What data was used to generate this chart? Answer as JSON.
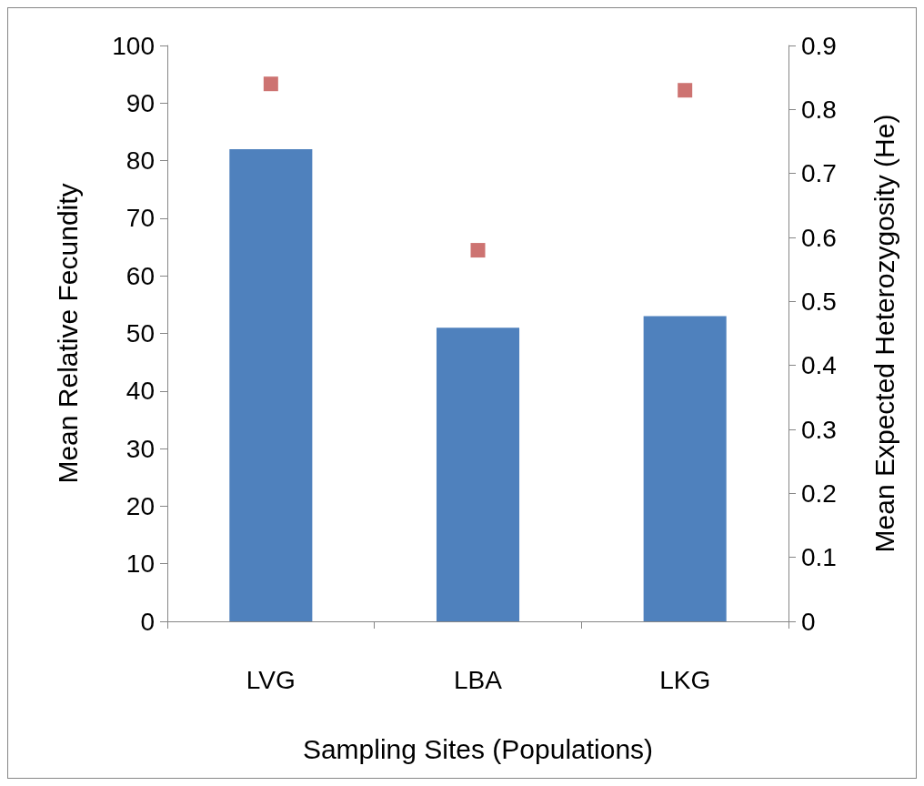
{
  "chart_data": {
    "type": "bar",
    "xlabel": "Sampling Sites (Populations)",
    "ylabel": "Mean Relative Fecundity",
    "y2label": "Mean Expected Heterozygosity (He)",
    "categories": [
      "LVG",
      "LBA",
      "LKG"
    ],
    "series": [
      {
        "color": "#4f81bd",
        "values": [
          82,
          51,
          53
        ]
      },
      {
        "type": "scatter",
        "axis": "y2",
        "color": "#c0504d",
        "marker": "square",
        "values": [
          0.84,
          0.58,
          0.83
        ]
      }
    ],
    "ylim": [
      0,
      100
    ],
    "yticks": [
      0,
      10,
      20,
      30,
      40,
      50,
      60,
      70,
      80,
      90,
      100
    ],
    "y2lim": [
      0,
      0.9
    ],
    "y2ticks": [
      0,
      0.1,
      0.2,
      0.3,
      0.4,
      0.5,
      0.6,
      0.7,
      0.8,
      0.9
    ],
    "grid": false
  }
}
